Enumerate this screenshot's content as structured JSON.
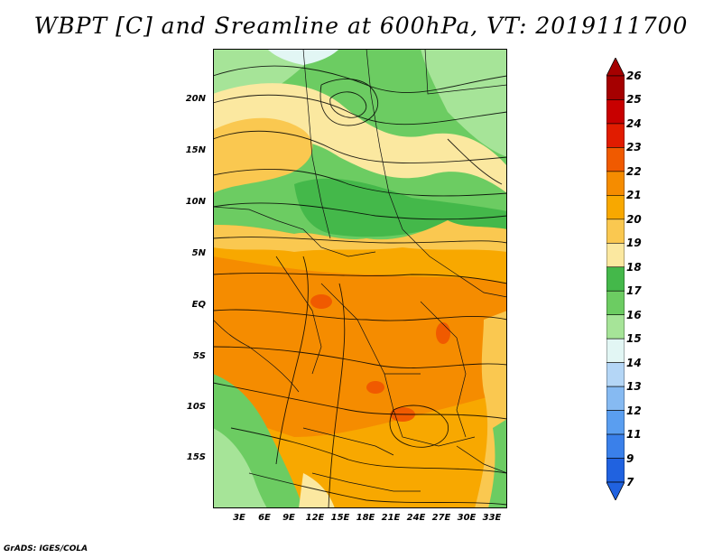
{
  "title": "WBPT [C] and Sreamline at 600hPa, VT: 2019111700",
  "footer": "GrADS: IGES/COLA",
  "lat_labels": [
    "20N",
    "15N",
    "10N",
    "5N",
    "EQ",
    "5S",
    "10S",
    "15S"
  ],
  "lon_labels": [
    "3E",
    "6E",
    "9E",
    "12E",
    "15E",
    "18E",
    "21E",
    "24E",
    "27E",
    "30E",
    "33E"
  ],
  "colorbar": {
    "labels": [
      "26",
      "25",
      "24",
      "23",
      "22",
      "21",
      "20",
      "19",
      "18",
      "17",
      "16",
      "15",
      "14",
      "13",
      "12",
      "11",
      "9",
      "7"
    ],
    "colors": [
      "#a50000",
      "#c80000",
      "#e11c00",
      "#f05a00",
      "#f58c00",
      "#f8a800",
      "#fac850",
      "#fbe8a0",
      "#44b84a",
      "#6ccc62",
      "#a6e498",
      "#e2f6f4",
      "#b4d6f6",
      "#86baf2",
      "#5a9ef0",
      "#3a80ea",
      "#2062e0"
    ],
    "over_color": "#a50000",
    "under_color": "#2062e0"
  },
  "map": {
    "field": "wet bulb potential temperature",
    "level": "600hPa",
    "valid_time": "2019111700"
  }
}
